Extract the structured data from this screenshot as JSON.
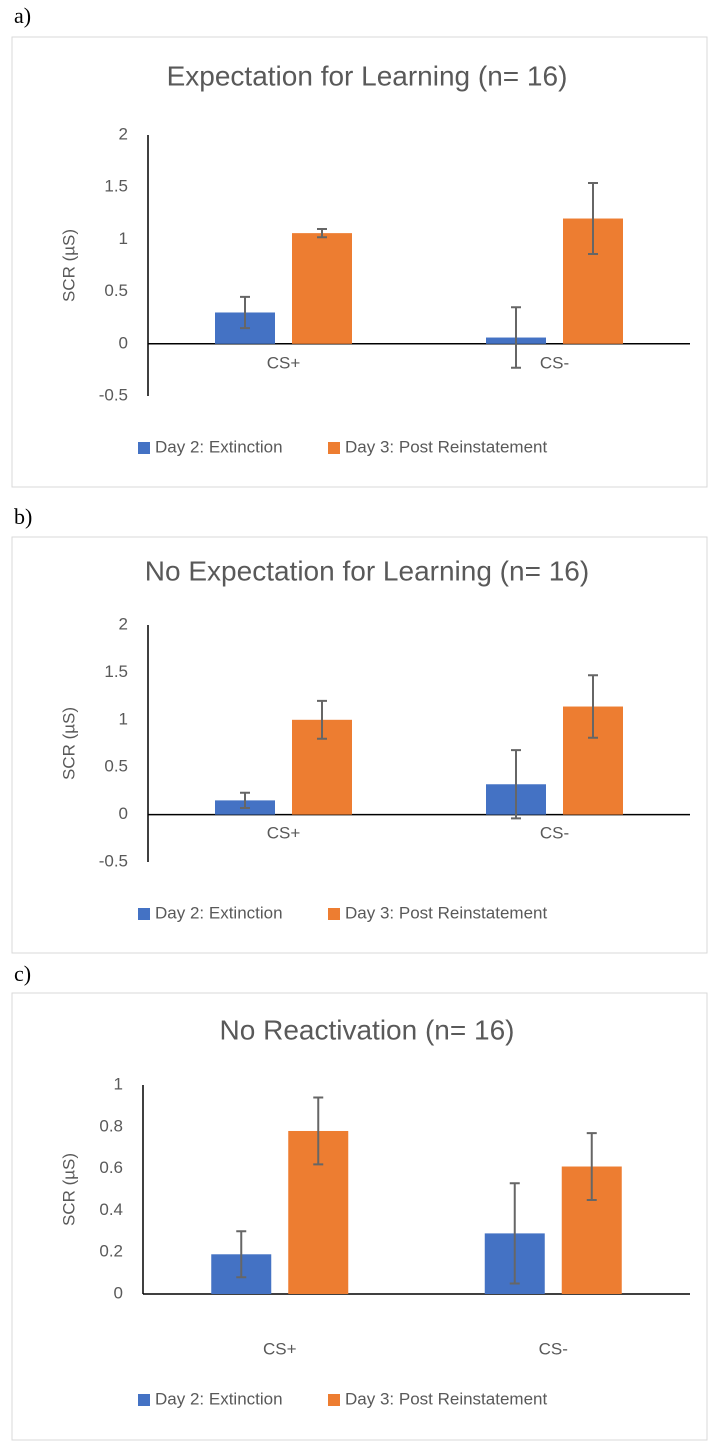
{
  "chart_data": [
    {
      "type": "bar",
      "panel_label": "a)",
      "title": "Expectation for Learning (n= 16)",
      "y_label": "SCR (µS)",
      "categories": [
        "CS+",
        "CS-"
      ],
      "series": [
        {
          "name": "Day 2: Extinction",
          "color": "#4472c4",
          "values": [
            0.3,
            0.06
          ],
          "errors": [
            0.15,
            0.29
          ]
        },
        {
          "name": "Day 3: Post Reinstatement",
          "color": "#ed7d31",
          "values": [
            1.06,
            1.2
          ],
          "errors": [
            0.04,
            0.34
          ]
        }
      ],
      "ylim": [
        -0.5,
        2
      ],
      "yticks": [
        -0.5,
        0,
        0.5,
        1,
        1.5,
        2
      ],
      "legend": "bottom"
    },
    {
      "type": "bar",
      "panel_label": "b)",
      "title": "No Expectation for Learning  (n= 16)",
      "y_label": "SCR (µS)",
      "categories": [
        "CS+",
        "CS-"
      ],
      "series": [
        {
          "name": "Day 2: Extinction",
          "color": "#4472c4",
          "values": [
            0.15,
            0.32
          ],
          "errors": [
            0.08,
            0.36
          ]
        },
        {
          "name": "Day 3: Post Reinstatement",
          "color": "#ed7d31",
          "values": [
            1.0,
            1.14
          ],
          "errors": [
            0.2,
            0.33
          ]
        }
      ],
      "ylim": [
        -0.5,
        2
      ],
      "yticks": [
        -0.5,
        0,
        0.5,
        1,
        1.5,
        2
      ],
      "legend": "bottom"
    },
    {
      "type": "bar",
      "panel_label": "c)",
      "title": "No Reactivation (n= 16)",
      "y_label": "SCR (µS)",
      "categories": [
        "CS+",
        "CS-"
      ],
      "series": [
        {
          "name": "Day 2: Extinction",
          "color": "#4472c4",
          "values": [
            0.19,
            0.29
          ],
          "errors": [
            0.11,
            0.24
          ]
        },
        {
          "name": "Day 3: Post Reinstatement",
          "color": "#ed7d31",
          "values": [
            0.78,
            0.61
          ],
          "errors": [
            0.16,
            0.16
          ]
        }
      ],
      "ylim": [
        0,
        1
      ],
      "yticks": [
        0,
        0.2,
        0.4,
        0.6,
        0.8,
        1
      ],
      "legend": "bottom"
    }
  ]
}
